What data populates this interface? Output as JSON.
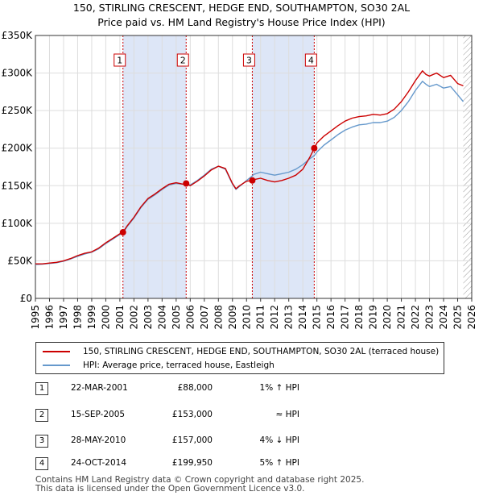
{
  "title_line1": "150, STIRLING CRESCENT, HEDGE END, SOUTHAMPTON, SO30 2AL",
  "title_line2": "Price paid vs. HM Land Registry's House Price Index (HPI)",
  "chart_data": {
    "type": "line",
    "xlim": [
      1995,
      2026
    ],
    "ylim": [
      0,
      350000
    ],
    "y_ticks": [
      0,
      50000,
      100000,
      150000,
      200000,
      250000,
      300000,
      350000
    ],
    "y_tick_labels": [
      "£0",
      "£50K",
      "£100K",
      "£150K",
      "£200K",
      "£250K",
      "£300K",
      "£350K"
    ],
    "x_ticks": [
      1995,
      1996,
      1997,
      1998,
      1999,
      2000,
      2001,
      2002,
      2003,
      2004,
      2005,
      2006,
      2007,
      2008,
      2009,
      2010,
      2011,
      2012,
      2013,
      2014,
      2015,
      2016,
      2017,
      2018,
      2019,
      2020,
      2021,
      2022,
      2023,
      2024,
      2025,
      2026
    ],
    "x_tick_labels": [
      "1995",
      "1996",
      "1997",
      "1998",
      "1999",
      "2000",
      "2001",
      "2002",
      "2003",
      "2004",
      "2005",
      "2006",
      "2007",
      "2008",
      "2009",
      "2010",
      "2011",
      "2012",
      "2013",
      "2014",
      "2015",
      "2016",
      "2017",
      "2018",
      "2019",
      "2020",
      "2021",
      "2022",
      "2023",
      "2024",
      "2025",
      "2026"
    ],
    "shaded_periods": [
      [
        2001.22,
        2005.71
      ],
      [
        2010.41,
        2014.81
      ]
    ],
    "future_hatch_from": 2025.4,
    "series": [
      {
        "name": "150, STIRLING CRESCENT, HEDGE END, SOUTHAMPTON, SO30 2AL (terraced house)",
        "color": "#cc0000",
        "x": [
          1995.0,
          1995.5,
          1996.0,
          1996.5,
          1997.0,
          1997.5,
          1998.0,
          1998.5,
          1999.0,
          1999.5,
          2000.0,
          2000.5,
          2001.0,
          2001.22,
          2001.5,
          2002.0,
          2002.5,
          2003.0,
          2003.5,
          2004.0,
          2004.5,
          2005.0,
          2005.5,
          2005.71,
          2006.0,
          2006.5,
          2007.0,
          2007.5,
          2008.0,
          2008.5,
          2009.0,
          2009.25,
          2009.5,
          2010.0,
          2010.41,
          2010.5,
          2011.0,
          2011.5,
          2012.0,
          2012.5,
          2013.0,
          2013.5,
          2014.0,
          2014.5,
          2014.81,
          2015.0,
          2015.5,
          2016.0,
          2016.5,
          2017.0,
          2017.5,
          2018.0,
          2018.5,
          2019.0,
          2019.5,
          2020.0,
          2020.5,
          2021.0,
          2021.5,
          2022.0,
          2022.5,
          2022.75,
          2023.0,
          2023.5,
          2024.0,
          2024.5,
          2025.0,
          2025.4
        ],
        "values": [
          46000,
          46000,
          47000,
          48000,
          50000,
          53000,
          57000,
          60000,
          62000,
          67000,
          74000,
          80000,
          86000,
          88000,
          96000,
          108000,
          122000,
          133000,
          139000,
          146000,
          152000,
          154000,
          152000,
          153000,
          150000,
          156000,
          163000,
          171000,
          176000,
          173000,
          153000,
          146000,
          150000,
          156000,
          157000,
          158000,
          160000,
          157000,
          155000,
          157000,
          160000,
          164000,
          172000,
          188000,
          199950,
          207000,
          216000,
          223000,
          230000,
          236000,
          240000,
          242000,
          243000,
          245000,
          244000,
          246000,
          252000,
          262000,
          275000,
          290000,
          303000,
          298000,
          296000,
          300000,
          294000,
          297000,
          286000,
          283000
        ]
      },
      {
        "name": "HPI: Average price, terraced house, Eastleigh",
        "color": "#6699cc",
        "x": [
          1995.0,
          1995.5,
          1996.0,
          1996.5,
          1997.0,
          1997.5,
          1998.0,
          1998.5,
          1999.0,
          1999.5,
          2000.0,
          2000.5,
          2001.0,
          2001.22,
          2001.5,
          2002.0,
          2002.5,
          2003.0,
          2003.5,
          2004.0,
          2004.5,
          2005.0,
          2005.5,
          2005.71,
          2006.0,
          2006.5,
          2007.0,
          2007.5,
          2008.0,
          2008.5,
          2009.0,
          2009.25,
          2009.5,
          2010.0,
          2010.41,
          2010.5,
          2011.0,
          2011.5,
          2012.0,
          2012.5,
          2013.0,
          2013.5,
          2014.0,
          2014.5,
          2014.81,
          2015.0,
          2015.5,
          2016.0,
          2016.5,
          2017.0,
          2017.5,
          2018.0,
          2018.5,
          2019.0,
          2019.5,
          2020.0,
          2020.5,
          2021.0,
          2021.5,
          2022.0,
          2022.5,
          2022.75,
          2023.0,
          2023.5,
          2024.0,
          2024.5,
          2025.0,
          2025.4
        ],
        "values": [
          45000,
          45500,
          46500,
          47500,
          49500,
          52500,
          56000,
          59000,
          61500,
          66000,
          73000,
          79000,
          85000,
          87000,
          95000,
          107000,
          121000,
          132000,
          138000,
          145000,
          151000,
          153000,
          152000,
          153000,
          151000,
          157000,
          164000,
          172000,
          176000,
          172000,
          152000,
          145000,
          149000,
          157000,
          163000,
          165000,
          168000,
          166000,
          164000,
          166000,
          168000,
          172000,
          178000,
          186000,
          190000,
          195000,
          204000,
          211000,
          218000,
          224000,
          228000,
          231000,
          232000,
          234000,
          234000,
          236000,
          241000,
          250000,
          262000,
          277000,
          289000,
          285000,
          282000,
          285000,
          280000,
          282000,
          271000,
          262000
        ]
      }
    ],
    "sale_markers": [
      {
        "label": "1",
        "x": 2001.22,
        "y": 88000
      },
      {
        "label": "2",
        "x": 2005.71,
        "y": 153000
      },
      {
        "label": "3",
        "x": 2010.41,
        "y": 157000
      },
      {
        "label": "4",
        "x": 2014.81,
        "y": 199950
      }
    ]
  },
  "legend": {
    "property_label": "150, STIRLING CRESCENT, HEDGE END, SOUTHAMPTON, SO30 2AL (terraced house)",
    "hpi_label": "HPI: Average price, terraced house, Eastleigh",
    "property_color": "#cc0000",
    "hpi_color": "#6699cc"
  },
  "sales": [
    {
      "num": "1",
      "date": "22-MAR-2001",
      "price": "£88,000",
      "hpi": "1% ↑ HPI"
    },
    {
      "num": "2",
      "date": "15-SEP-2005",
      "price": "£153,000",
      "hpi": "≈ HPI"
    },
    {
      "num": "3",
      "date": "28-MAY-2010",
      "price": "£157,000",
      "hpi": "4% ↓ HPI"
    },
    {
      "num": "4",
      "date": "24-OCT-2014",
      "price": "£199,950",
      "hpi": "5% ↑ HPI"
    }
  ],
  "footer": {
    "line1": "Contains HM Land Registry data © Crown copyright and database right 2025.",
    "line2": "This data is licensed under the Open Government Licence v3.0."
  }
}
